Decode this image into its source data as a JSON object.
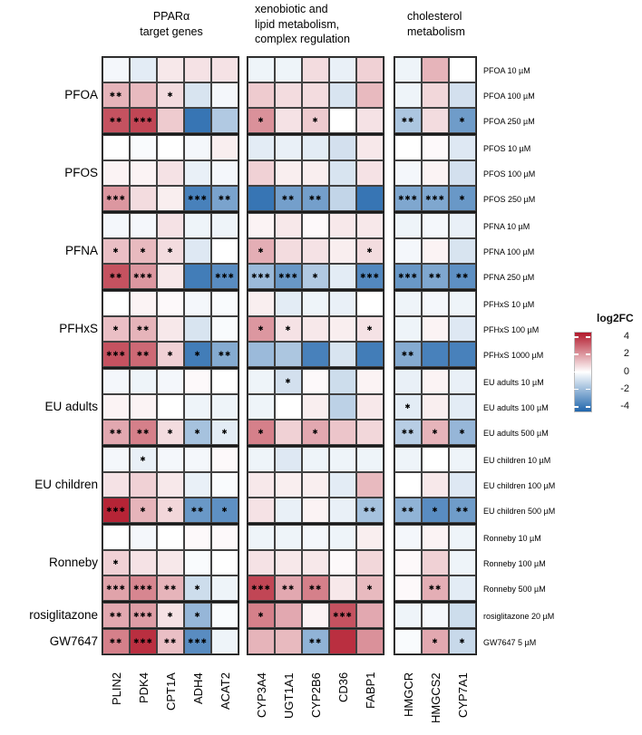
{
  "legend": {
    "title": "log2FC",
    "ticks": [
      "4",
      "2",
      "0",
      "-2",
      "-4"
    ],
    "tick_values": [
      4,
      2,
      0,
      -2,
      -4
    ],
    "pos_color": "#b2182b",
    "zero_color": "#ffffff",
    "neg_color": "#2166ac"
  },
  "chart_data": {
    "type": "heatmap",
    "title": "",
    "value_label": "log2FC",
    "value_range": [
      -4,
      4
    ],
    "legend_position": "right",
    "columns": [
      "PLIN2",
      "PDK4",
      "CPT1A",
      "ADH4",
      "ACAT2",
      "CYP3A4",
      "UGT1A1",
      "CYP2B6",
      "CD36",
      "FABP1",
      "HMGCR",
      "HMGCS2",
      "CYP7A1"
    ],
    "column_groups": [
      {
        "label": "PPARα\ntarget genes",
        "genes": [
          "PLIN2",
          "PDK4",
          "CPT1A",
          "ADH4",
          "ACAT2"
        ]
      },
      {
        "label": "xenobiotic and\nlipid metabolism,\ncomplex regulation",
        "genes": [
          "CYP3A4",
          "UGT1A1",
          "CYP2B6",
          "CD36",
          "FABP1"
        ]
      },
      {
        "label": "cholesterol\nmetabolism",
        "genes": [
          "HMGCR",
          "HMGCS2",
          "CYP7A1"
        ]
      }
    ],
    "row_groups": [
      {
        "label": "PFOA",
        "rows": [
          {
            "label": "PFOA 10 µM",
            "values": [
              -0.2,
              -0.5,
              0.4,
              0.5,
              0.5,
              -0.3,
              -0.3,
              0.6,
              -0.4,
              0.8,
              -0.3,
              1.3,
              0.0
            ],
            "stars": [
              "",
              "",
              "",
              "",
              "",
              "",
              "",
              "",
              "",
              "",
              "",
              "",
              ""
            ]
          },
          {
            "label": "PFOA 100 µM",
            "values": [
              1.3,
              1.2,
              0.6,
              -0.7,
              -0.2,
              0.9,
              0.6,
              0.6,
              -0.7,
              1.2,
              -0.3,
              0.7,
              -0.8
            ],
            "stars": [
              "**",
              "",
              "*",
              "",
              "",
              "",
              "",
              "",
              "",
              "",
              "",
              "",
              ""
            ]
          },
          {
            "label": "PFOA 250 µM",
            "values": [
              3.0,
              3.2,
              0.9,
              -3.6,
              -1.4,
              1.9,
              0.5,
              0.9,
              0.0,
              0.5,
              -1.5,
              0.6,
              -2.6
            ],
            "stars": [
              "**",
              "***",
              "",
              "",
              "",
              "*",
              "",
              "*",
              "",
              "",
              "**",
              "",
              "*"
            ]
          }
        ]
      },
      {
        "label": "PFOS",
        "rows": [
          {
            "label": "PFOS 10 µM",
            "values": [
              0.0,
              -0.1,
              0.0,
              -0.2,
              0.3,
              -0.5,
              -0.4,
              -0.5,
              -0.8,
              0.4,
              0.0,
              0.1,
              -0.6
            ],
            "stars": [
              "",
              "",
              "",
              "",
              "",
              "",
              "",
              "",
              "",
              "",
              "",
              "",
              ""
            ]
          },
          {
            "label": "PFOS 100 µM",
            "values": [
              0.2,
              0.2,
              0.5,
              -0.4,
              -0.2,
              0.8,
              0.3,
              0.3,
              -0.7,
              0.5,
              -0.2,
              0.2,
              -0.8
            ],
            "stars": [
              "",
              "",
              "",
              "",
              "",
              "",
              "",
              "",
              "",
              "",
              "",
              "",
              ""
            ]
          },
          {
            "label": "PFOS 250 µM",
            "values": [
              1.8,
              0.6,
              0.3,
              -3.3,
              -2.4,
              -3.6,
              -2.5,
              -2.5,
              -1.1,
              -3.6,
              -2.3,
              -2.3,
              -2.7
            ],
            "stars": [
              "***",
              "",
              "",
              "***",
              "**",
              "",
              "**",
              "**",
              "",
              "",
              "***",
              "***",
              "*"
            ]
          }
        ]
      },
      {
        "label": "PFNA",
        "rows": [
          {
            "label": "PFNA 10 µM",
            "values": [
              -0.2,
              -0.2,
              0.5,
              -0.3,
              -0.3,
              0.2,
              0.4,
              0.1,
              0.4,
              0.4,
              -0.3,
              -0.2,
              -0.4
            ],
            "stars": [
              "",
              "",
              "",
              "",
              "",
              "",
              "",
              "",
              "",
              "",
              "",
              "",
              ""
            ]
          },
          {
            "label": "PFNA 100 µM",
            "values": [
              1.1,
              1.2,
              0.6,
              -0.6,
              0.0,
              1.4,
              0.6,
              0.5,
              0.3,
              0.6,
              -0.2,
              0.2,
              -0.7
            ],
            "stars": [
              "*",
              "*",
              "*",
              "",
              "",
              "*",
              "",
              "",
              "",
              "*",
              "",
              "",
              ""
            ]
          },
          {
            "label": "PFNA 250 µM",
            "values": [
              3.0,
              1.8,
              0.4,
              -3.4,
              -3.0,
              -1.8,
              -2.7,
              -1.4,
              -0.5,
              -3.1,
              -2.7,
              -2.3,
              -2.9
            ],
            "stars": [
              "**",
              "***",
              "",
              "",
              "***",
              "***",
              "***",
              "*",
              "",
              "***",
              "***",
              "**",
              "**"
            ]
          }
        ]
      },
      {
        "label": "PFHxS",
        "rows": [
          {
            "label": "PFHxS 10 µM",
            "values": [
              0.0,
              0.2,
              0.1,
              -0.2,
              -0.1,
              0.3,
              -0.5,
              -0.3,
              -0.4,
              0.0,
              -0.3,
              -0.2,
              -0.3
            ],
            "stars": [
              "",
              "",
              "",
              "",
              "",
              "",
              "",
              "",
              "",
              "",
              "",
              "",
              ""
            ]
          },
          {
            "label": "PFHxS 100 µM",
            "values": [
              1.1,
              1.3,
              0.4,
              -0.7,
              -0.1,
              1.8,
              0.5,
              0.4,
              0.3,
              0.5,
              -0.3,
              0.2,
              -0.6
            ],
            "stars": [
              "*",
              "**",
              "",
              "",
              "",
              "*",
              "*",
              "",
              "",
              "*",
              "",
              "",
              ""
            ]
          },
          {
            "label": "PFHxS 1000 µM",
            "values": [
              3.0,
              2.6,
              0.8,
              -3.4,
              -2.2,
              -1.8,
              -1.5,
              -3.3,
              -0.7,
              -3.4,
              -2.2,
              -3.3,
              -3.3
            ],
            "stars": [
              "***",
              "**",
              "*",
              "*",
              "**",
              "",
              "",
              "",
              "",
              "",
              "**",
              "",
              ""
            ]
          }
        ]
      },
      {
        "label": "EU adults",
        "rows": [
          {
            "label": "EU adults 10 µM",
            "values": [
              -0.2,
              -0.3,
              -0.2,
              0.1,
              0.0,
              -0.3,
              -0.8,
              0.1,
              -0.9,
              0.2,
              -0.4,
              0.2,
              -0.4
            ],
            "stars": [
              "",
              "",
              "",
              "",
              "",
              "",
              "*",
              "",
              "",
              "",
              "",
              "",
              ""
            ]
          },
          {
            "label": "EU adults 100 µM",
            "values": [
              0.2,
              0.2,
              0.0,
              -0.3,
              -0.3,
              -0.3,
              0.0,
              0.3,
              -1.2,
              0.4,
              -0.5,
              0.3,
              -0.5
            ],
            "stars": [
              "",
              "",
              "",
              "",
              "",
              "",
              "",
              "",
              "",
              "",
              "*",
              "",
              ""
            ]
          },
          {
            "label": "EU adults 500 µM",
            "values": [
              1.5,
              2.2,
              0.6,
              -1.6,
              -0.5,
              2.2,
              0.8,
              1.5,
              1.0,
              0.7,
              -1.3,
              1.3,
              -1.9
            ],
            "stars": [
              "**",
              "**",
              "*",
              "*",
              "*",
              "*",
              "",
              "*",
              "",
              "",
              "**",
              "*",
              "*"
            ]
          }
        ]
      },
      {
        "label": "EU children",
        "rows": [
          {
            "label": "EU children 10 µM",
            "values": [
              -0.2,
              -0.4,
              -0.2,
              -0.2,
              0.1,
              -0.3,
              -0.6,
              -0.3,
              -0.3,
              -0.3,
              -0.3,
              0.0,
              -0.3
            ],
            "stars": [
              "",
              "*",
              "",
              "",
              "",
              "",
              "",
              "",
              "",
              "",
              "",
              "",
              ""
            ]
          },
          {
            "label": "EU children 100 µM",
            "values": [
              0.5,
              0.8,
              0.4,
              -0.4,
              -0.1,
              0.4,
              0.3,
              0.3,
              -0.5,
              1.2,
              0.0,
              0.4,
              -0.6
            ],
            "stars": [
              "",
              "",
              "",
              "",
              "",
              "",
              "",
              "",
              "",
              "",
              "",
              "",
              ""
            ]
          },
          {
            "label": "EU children 500 µM",
            "values": [
              3.8,
              1.3,
              0.7,
              -2.7,
              -2.9,
              0.5,
              -0.4,
              0.2,
              -0.4,
              -1.6,
              -2.0,
              -3.0,
              -2.6
            ],
            "stars": [
              "***",
              "*",
              "*",
              "**",
              "*",
              "",
              "",
              "",
              "",
              "**",
              "**",
              "*",
              "**"
            ]
          }
        ]
      },
      {
        "label": "Ronneby",
        "rows": [
          {
            "label": "Ronneby 10 µM",
            "values": [
              0.0,
              -0.2,
              0.0,
              0.1,
              0.1,
              -0.3,
              -0.3,
              -0.2,
              -0.3,
              0.3,
              -0.2,
              0.2,
              -0.3
            ],
            "stars": [
              "",
              "",
              "",
              "",
              "",
              "",
              "",
              "",
              "",
              "",
              "",
              "",
              ""
            ]
          },
          {
            "label": "Ronneby 100 µM",
            "values": [
              0.8,
              0.5,
              0.4,
              -0.1,
              0.0,
              0.5,
              0.4,
              0.4,
              0.1,
              0.7,
              0.1,
              0.8,
              -0.3
            ],
            "stars": [
              "*",
              "",
              "",
              "",
              "",
              "",
              "",
              "",
              "",
              "",
              "",
              "",
              ""
            ]
          },
          {
            "label": "Ronneby 500 µM",
            "values": [
              1.6,
              2.1,
              1.3,
              -0.9,
              -0.3,
              3.2,
              1.5,
              2.2,
              0.4,
              1.2,
              0.1,
              1.4,
              -0.5
            ],
            "stars": [
              "***",
              "***",
              "**",
              "*",
              "",
              "***",
              "**",
              "**",
              "",
              "*",
              "",
              "**",
              ""
            ]
          }
        ]
      },
      {
        "label": "rosiglitazone",
        "rows": [
          {
            "label": "rosiglitazone 20 µM",
            "values": [
              1.5,
              1.7,
              0.5,
              -1.9,
              -0.1,
              2.2,
              1.5,
              0.2,
              3.0,
              1.5,
              -0.3,
              -0.2,
              -0.9
            ],
            "stars": [
              "**",
              "***",
              "*",
              "*",
              "",
              "*",
              "",
              "",
              "***",
              "",
              "",
              "",
              ""
            ]
          }
        ]
      },
      {
        "label": "GW7647",
        "rows": [
          {
            "label": "GW7647 5 µM",
            "values": [
              2.2,
              3.6,
              1.1,
              -3.0,
              -0.3,
              1.3,
              1.2,
              -2.0,
              3.6,
              1.9,
              -0.1,
              1.5,
              -1.0
            ],
            "stars": [
              "**",
              "***",
              "**",
              "***",
              "",
              "",
              "",
              "**",
              "",
              "",
              "",
              "*",
              "*"
            ]
          }
        ]
      }
    ]
  }
}
